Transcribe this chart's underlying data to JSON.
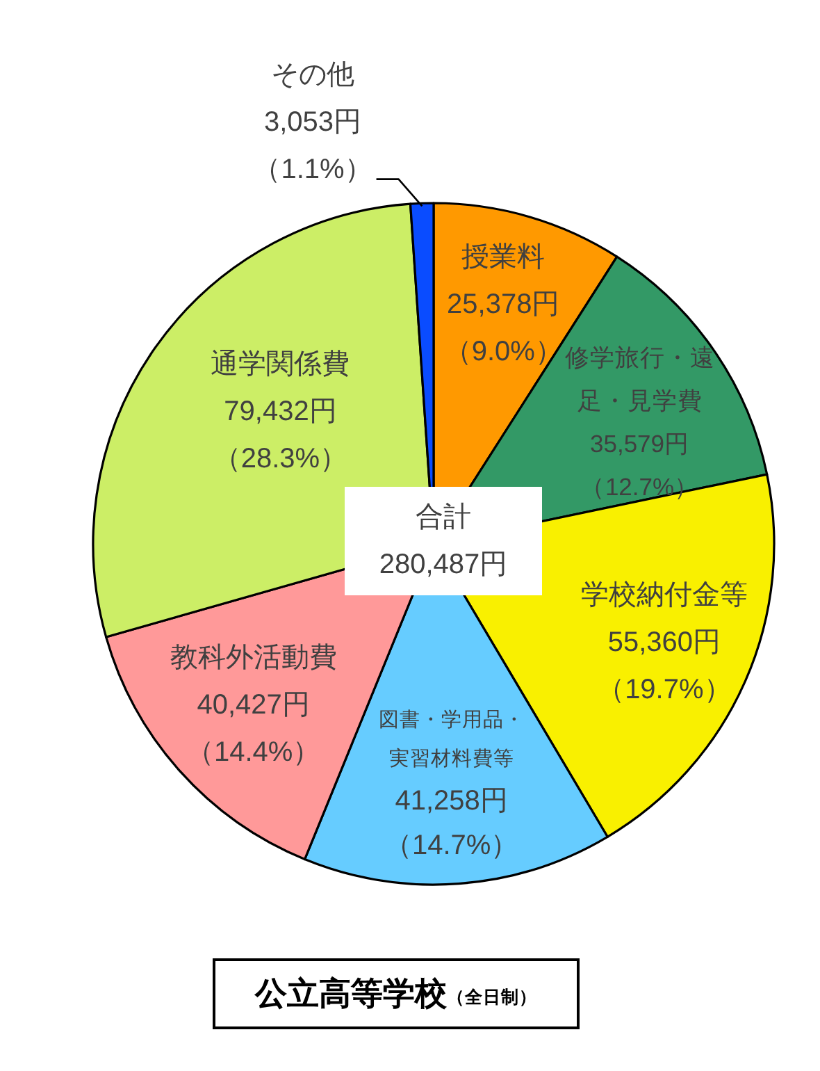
{
  "chart_data": {
    "type": "pie",
    "title": "公立高等学校",
    "subtitle": "（全日制）",
    "categories": [
      "授業料",
      "修学旅行・遠足・見学費",
      "学校納付金等",
      "図書・学用品・実習材料費等",
      "教科外活動費",
      "通学関係費",
      "その他"
    ],
    "values": [
      25378,
      35579,
      55360,
      41258,
      40427,
      79432,
      3053
    ],
    "colors": [
      "#ff9900",
      "#339966",
      "#f9f000",
      "#66ccff",
      "#ff9999",
      "#ccee66",
      "#0a4cff"
    ],
    "value_labels": [
      "25,378円（9.0%）",
      "35,579円（12.7%）",
      "55,360円（19.7%）",
      "41,258円（14.7%）",
      "40,427円（14.4%）",
      "79,432円（28.3%）",
      "3,053円（1.1%）"
    ],
    "annotations": [
      "合計\n280,487円"
    ]
  }
}
